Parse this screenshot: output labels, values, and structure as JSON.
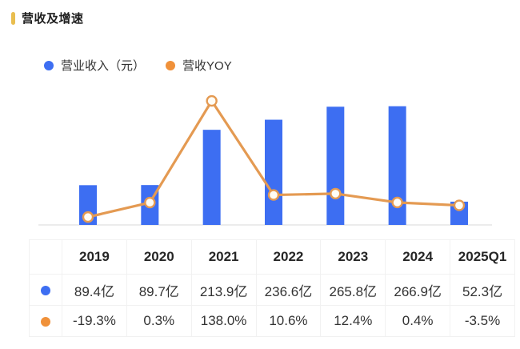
{
  "title": "营收及增速",
  "accent_color": "#E9BE4F",
  "chart_data": {
    "type": "bar",
    "categories": [
      "2019",
      "2020",
      "2021",
      "2022",
      "2023",
      "2024",
      "2025Q1"
    ],
    "series": [
      {
        "name": "营业收入（元）",
        "type": "bar",
        "color": "#3D6EF2",
        "unit": "亿",
        "values": [
          89.4,
          89.7,
          213.9,
          236.6,
          265.8,
          266.9,
          52.3
        ]
      },
      {
        "name": "营收YOY",
        "type": "line",
        "color": "#E49A52",
        "marker_fill": "#FFFDF6",
        "unit": "%",
        "values": [
          -19.3,
          0.3,
          138.0,
          10.6,
          12.4,
          0.4,
          -3.5
        ]
      }
    ],
    "title": "营收及增速",
    "xlabel": "",
    "ylabel": "",
    "ylim": [
      0,
      270
    ],
    "y2lim": [
      -30,
      150
    ],
    "grid": false,
    "legend_position": "top",
    "baseline_color": "#ECECEC"
  },
  "legend": {
    "dot_colors": {
      "revenue": "#3D6EF2",
      "yoy": "#F0913A"
    }
  },
  "table": {
    "columns": [
      "",
      "2019",
      "2020",
      "2021",
      "2022",
      "2023",
      "2024",
      "2025Q1"
    ],
    "rows": [
      {
        "series": "营业收入（元）",
        "dot_color": "#3D6EF2",
        "cells": [
          "89.4亿",
          "89.7亿",
          "213.9亿",
          "236.6亿",
          "265.8亿",
          "266.9亿",
          "52.3亿"
        ]
      },
      {
        "series": "营收YOY",
        "dot_color": "#F0913A",
        "cells": [
          "-19.3%",
          "0.3%",
          "138.0%",
          "10.6%",
          "12.4%",
          "0.4%",
          "-3.5%"
        ]
      }
    ]
  }
}
